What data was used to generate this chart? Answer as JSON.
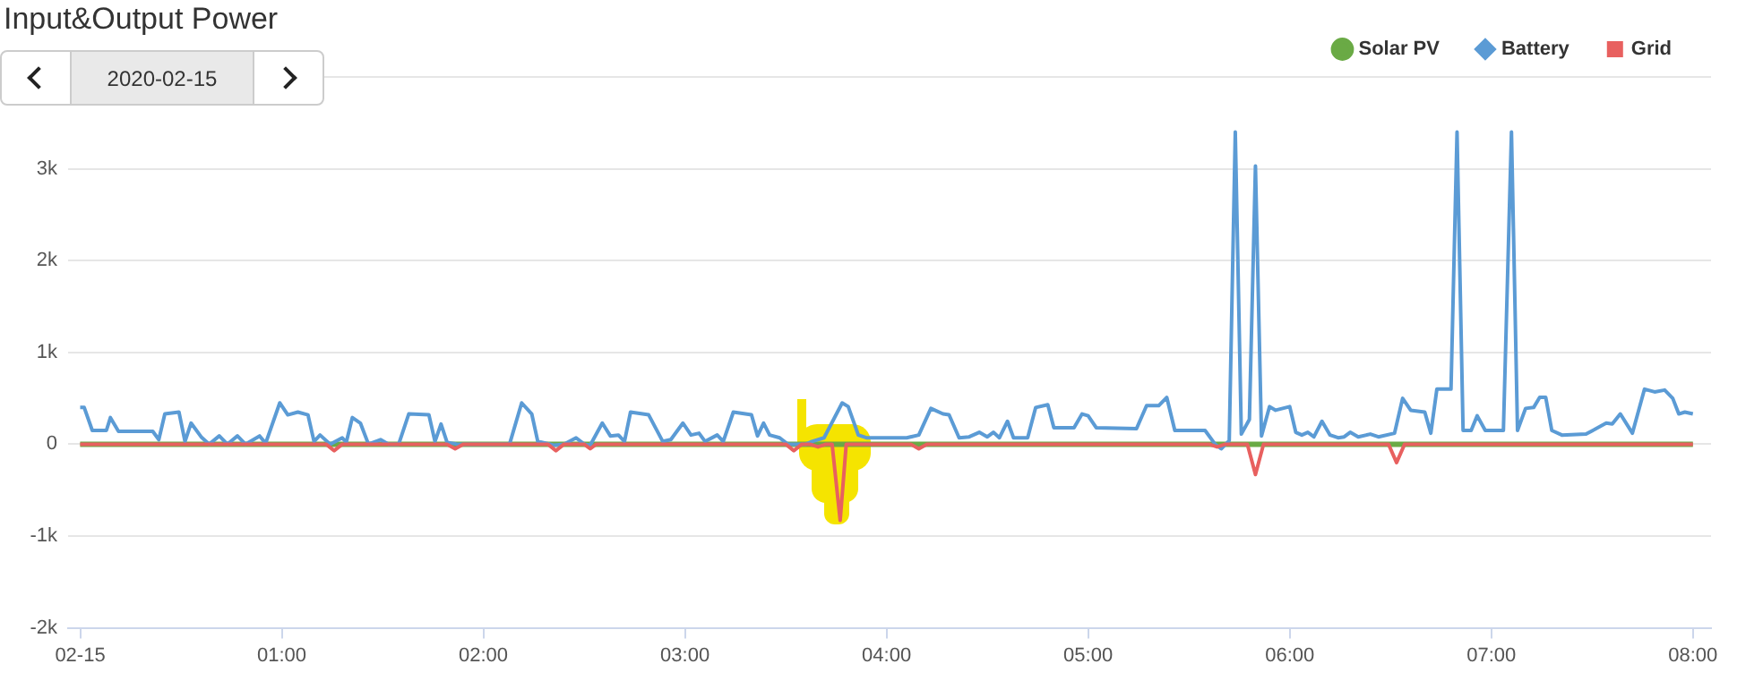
{
  "chart_data": {
    "type": "line",
    "title": "Input&Output Power",
    "annotations": [
      "2020-02-15"
    ],
    "xlim": [
      -0.06,
      8.09
    ],
    "xticks": [
      {
        "value": 0,
        "label": "02-15"
      },
      {
        "value": 1,
        "label": "01:00"
      },
      {
        "value": 2,
        "label": "02:00"
      },
      {
        "value": 3,
        "label": "03:00"
      },
      {
        "value": 4,
        "label": "04:00"
      },
      {
        "value": 5,
        "label": "05:00"
      },
      {
        "value": 6,
        "label": "06:00"
      },
      {
        "value": 7,
        "label": "07:00"
      },
      {
        "value": 8,
        "label": "08:00"
      }
    ],
    "ylim": [
      -2000,
      4000
    ],
    "yticks": [
      {
        "value": -2000,
        "label": "-2k"
      },
      {
        "value": -1000,
        "label": "-1k"
      },
      0,
      {
        "value": 1000,
        "label": "1k"
      },
      {
        "value": 2000,
        "label": "2k"
      },
      {
        "value": 3000,
        "label": "3k"
      },
      {
        "value": 4000,
        "label": null
      }
    ],
    "grid": "y",
    "legend": "top right",
    "marker": "none",
    "line_style": "solid",
    "series": [
      {
        "name": "Solar PV",
        "color": "#6aaa45",
        "x": [
          0,
          8
        ],
        "values": [
          0,
          0
        ]
      },
      {
        "name": "Battery",
        "color": "#5b9bd5",
        "x": [
          0,
          0.02,
          0.06,
          0.13,
          0.15,
          0.19,
          0.36,
          0.39,
          0.42,
          0.49,
          0.52,
          0.55,
          0.6,
          0.64,
          0.69,
          0.73,
          0.78,
          0.82,
          0.89,
          0.92,
          0.99,
          1.03,
          1.08,
          1.13,
          1.16,
          1.19,
          1.24,
          1.3,
          1.32,
          1.35,
          1.39,
          1.43,
          1.49,
          1.53,
          1.58,
          1.63,
          1.73,
          1.76,
          1.79,
          1.82,
          1.87,
          2.13,
          2.19,
          2.24,
          2.27,
          2.35,
          2.4,
          2.46,
          2.5,
          2.53,
          2.59,
          2.63,
          2.67,
          2.7,
          2.73,
          2.82,
          2.89,
          2.93,
          2.99,
          3.03,
          3.07,
          3.1,
          3.16,
          3.19,
          3.24,
          3.33,
          3.36,
          3.39,
          3.42,
          3.47,
          3.51,
          3.6,
          3.63,
          3.69,
          3.78,
          3.81,
          3.86,
          3.9,
          4.1,
          4.16,
          4.22,
          4.28,
          4.31,
          4.36,
          4.41,
          4.46,
          4.5,
          4.53,
          4.56,
          4.6,
          4.63,
          4.7,
          4.74,
          4.8,
          4.83,
          4.93,
          4.97,
          5,
          5.04,
          5.24,
          5.29,
          5.35,
          5.39,
          5.43,
          5.58,
          5.63,
          5.66,
          5.7,
          5.73,
          5.76,
          5.8,
          5.83,
          5.86,
          5.9,
          5.93,
          6,
          6.03,
          6.06,
          6.09,
          6.12,
          6.16,
          6.2,
          6.24,
          6.27,
          6.3,
          6.34,
          6.4,
          6.44,
          6.52,
          6.56,
          6.6,
          6.67,
          6.7,
          6.73,
          6.8,
          6.83,
          6.86,
          6.9,
          6.93,
          6.97,
          7.06,
          7.1,
          7.13,
          7.17,
          7.21,
          7.24,
          7.27,
          7.3,
          7.35,
          7.47,
          7.57,
          7.6,
          7.64,
          7.7,
          7.76,
          7.81,
          7.86,
          7.9,
          7.93,
          7.96,
          8
        ],
        "values": [
          400,
          400,
          150,
          150,
          290,
          140,
          140,
          50,
          330,
          350,
          30,
          230,
          80,
          0,
          90,
          0,
          90,
          0,
          90,
          10,
          450,
          320,
          350,
          320,
          30,
          100,
          0,
          70,
          20,
          290,
          230,
          0,
          50,
          0,
          0,
          330,
          320,
          30,
          220,
          20,
          0,
          0,
          450,
          330,
          30,
          -10,
          0,
          70,
          0,
          -10,
          230,
          90,
          100,
          30,
          350,
          320,
          30,
          50,
          230,
          100,
          120,
          30,
          100,
          30,
          350,
          320,
          90,
          230,
          100,
          70,
          0,
          0,
          30,
          70,
          450,
          410,
          100,
          70,
          70,
          100,
          390,
          330,
          320,
          70,
          80,
          130,
          80,
          130,
          70,
          250,
          70,
          70,
          400,
          430,
          180,
          180,
          330,
          310,
          180,
          170,
          420,
          420,
          510,
          150,
          150,
          0,
          -50,
          40,
          3400,
          110,
          270,
          3030,
          90,
          410,
          370,
          410,
          130,
          100,
          130,
          80,
          250,
          100,
          70,
          80,
          130,
          80,
          110,
          80,
          120,
          500,
          370,
          350,
          120,
          600,
          600,
          3400,
          150,
          150,
          310,
          150,
          150,
          3400,
          150,
          390,
          400,
          510,
          510,
          150,
          100,
          110,
          230,
          220,
          330,
          120,
          600,
          570,
          590,
          500,
          330,
          350,
          330
        ]
      },
      {
        "name": "Grid",
        "color": "#e8605f",
        "x": [
          0,
          1.22,
          1.26,
          1.3,
          1.82,
          1.86,
          1.9,
          2.32,
          2.36,
          2.4,
          2.5,
          2.53,
          2.56,
          3.5,
          3.54,
          3.58,
          3.62,
          3.66,
          3.7,
          3.73,
          3.77,
          3.8,
          4.12,
          4.16,
          4.2,
          5.6,
          5.64,
          5.68,
          5.79,
          5.83,
          5.87,
          6.49,
          6.53,
          6.57,
          8
        ],
        "values": [
          0,
          0,
          -70,
          0,
          0,
          -50,
          0,
          0,
          -70,
          0,
          0,
          -50,
          0,
          0,
          -70,
          0,
          0,
          -30,
          0,
          0,
          -830,
          0,
          0,
          -50,
          0,
          0,
          -30,
          0,
          0,
          -330,
          0,
          0,
          -200,
          0,
          0
        ]
      }
    ]
  }
}
